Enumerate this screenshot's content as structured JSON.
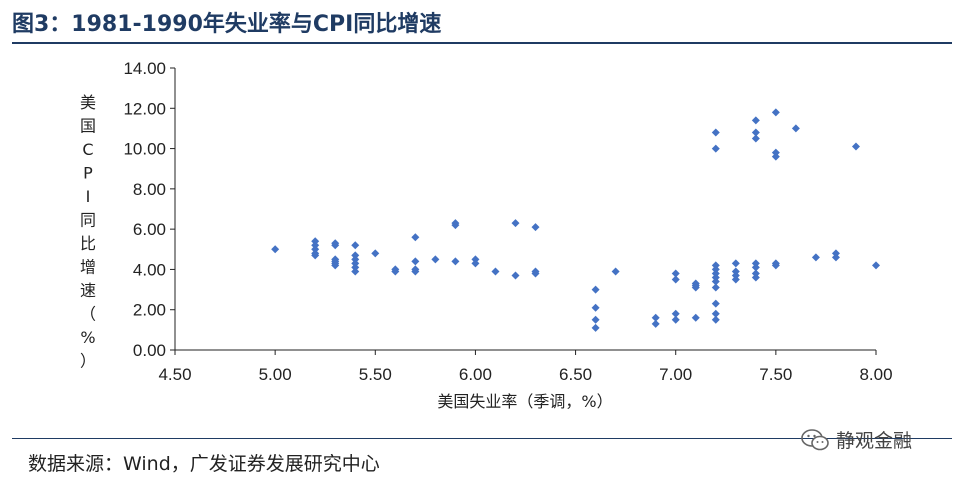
{
  "title": "图3：1981-1990年失业率与CPI同比增速",
  "source": "数据来源：Wind，广发证券发展研究中心",
  "watermark": "静观金融",
  "colors": {
    "marker": "#4472c4",
    "title": "#1f3b63",
    "axis": "#222222"
  },
  "chart_data": {
    "type": "scatter",
    "xlabel": "美国失业率（季调，%）",
    "ylabel": "美国CPI同比增速（%）",
    "xlim": [
      4.5,
      8.0
    ],
    "ylim": [
      0.0,
      14.0
    ],
    "xticks": [
      "4.50",
      "5.00",
      "5.50",
      "6.00",
      "6.50",
      "7.00",
      "7.50",
      "8.00"
    ],
    "yticks": [
      "0.00",
      "2.00",
      "4.00",
      "6.00",
      "8.00",
      "10.00",
      "12.00",
      "14.00"
    ],
    "grid": false,
    "legend": "none",
    "points": [
      [
        5.0,
        5.0
      ],
      [
        5.2,
        5.4
      ],
      [
        5.2,
        5.2
      ],
      [
        5.2,
        5.0
      ],
      [
        5.2,
        4.8
      ],
      [
        5.2,
        4.7
      ],
      [
        5.3,
        5.3
      ],
      [
        5.3,
        5.2
      ],
      [
        5.3,
        4.5
      ],
      [
        5.3,
        4.4
      ],
      [
        5.3,
        4.3
      ],
      [
        5.3,
        4.2
      ],
      [
        5.4,
        5.2
      ],
      [
        5.4,
        4.7
      ],
      [
        5.4,
        4.5
      ],
      [
        5.4,
        4.3
      ],
      [
        5.4,
        4.1
      ],
      [
        5.4,
        3.9
      ],
      [
        5.5,
        4.8
      ],
      [
        5.6,
        4.0
      ],
      [
        5.6,
        3.9
      ],
      [
        5.7,
        5.6
      ],
      [
        5.7,
        4.4
      ],
      [
        5.7,
        4.0
      ],
      [
        5.7,
        3.9
      ],
      [
        5.8,
        4.5
      ],
      [
        5.9,
        6.3
      ],
      [
        5.9,
        6.2
      ],
      [
        5.9,
        4.4
      ],
      [
        6.0,
        4.5
      ],
      [
        6.0,
        4.3
      ],
      [
        6.1,
        3.9
      ],
      [
        6.2,
        6.3
      ],
      [
        6.2,
        3.7
      ],
      [
        6.3,
        6.1
      ],
      [
        6.3,
        3.9
      ],
      [
        6.3,
        3.8
      ],
      [
        6.6,
        3.0
      ],
      [
        6.6,
        2.1
      ],
      [
        6.6,
        1.5
      ],
      [
        6.6,
        1.1
      ],
      [
        6.7,
        3.9
      ],
      [
        6.9,
        1.6
      ],
      [
        6.9,
        1.3
      ],
      [
        7.0,
        3.8
      ],
      [
        7.0,
        3.5
      ],
      [
        7.0,
        1.8
      ],
      [
        7.0,
        1.5
      ],
      [
        7.1,
        3.3
      ],
      [
        7.1,
        3.2
      ],
      [
        7.1,
        3.1
      ],
      [
        7.1,
        1.6
      ],
      [
        7.2,
        10.8
      ],
      [
        7.2,
        10.0
      ],
      [
        7.2,
        4.2
      ],
      [
        7.2,
        4.0
      ],
      [
        7.2,
        3.8
      ],
      [
        7.2,
        3.6
      ],
      [
        7.2,
        3.4
      ],
      [
        7.2,
        3.1
      ],
      [
        7.2,
        2.3
      ],
      [
        7.2,
        1.8
      ],
      [
        7.2,
        1.5
      ],
      [
        7.3,
        4.3
      ],
      [
        7.3,
        3.9
      ],
      [
        7.3,
        3.7
      ],
      [
        7.3,
        3.5
      ],
      [
        7.4,
        11.4
      ],
      [
        7.4,
        10.8
      ],
      [
        7.4,
        10.5
      ],
      [
        7.4,
        4.3
      ],
      [
        7.4,
        4.1
      ],
      [
        7.4,
        3.8
      ],
      [
        7.4,
        3.6
      ],
      [
        7.5,
        11.8
      ],
      [
        7.5,
        9.8
      ],
      [
        7.5,
        9.6
      ],
      [
        7.5,
        4.3
      ],
      [
        7.5,
        4.2
      ],
      [
        7.6,
        11.0
      ],
      [
        7.7,
        4.6
      ],
      [
        7.8,
        4.8
      ],
      [
        7.8,
        4.6
      ],
      [
        7.9,
        10.1
      ],
      [
        8.0,
        4.2
      ]
    ]
  }
}
